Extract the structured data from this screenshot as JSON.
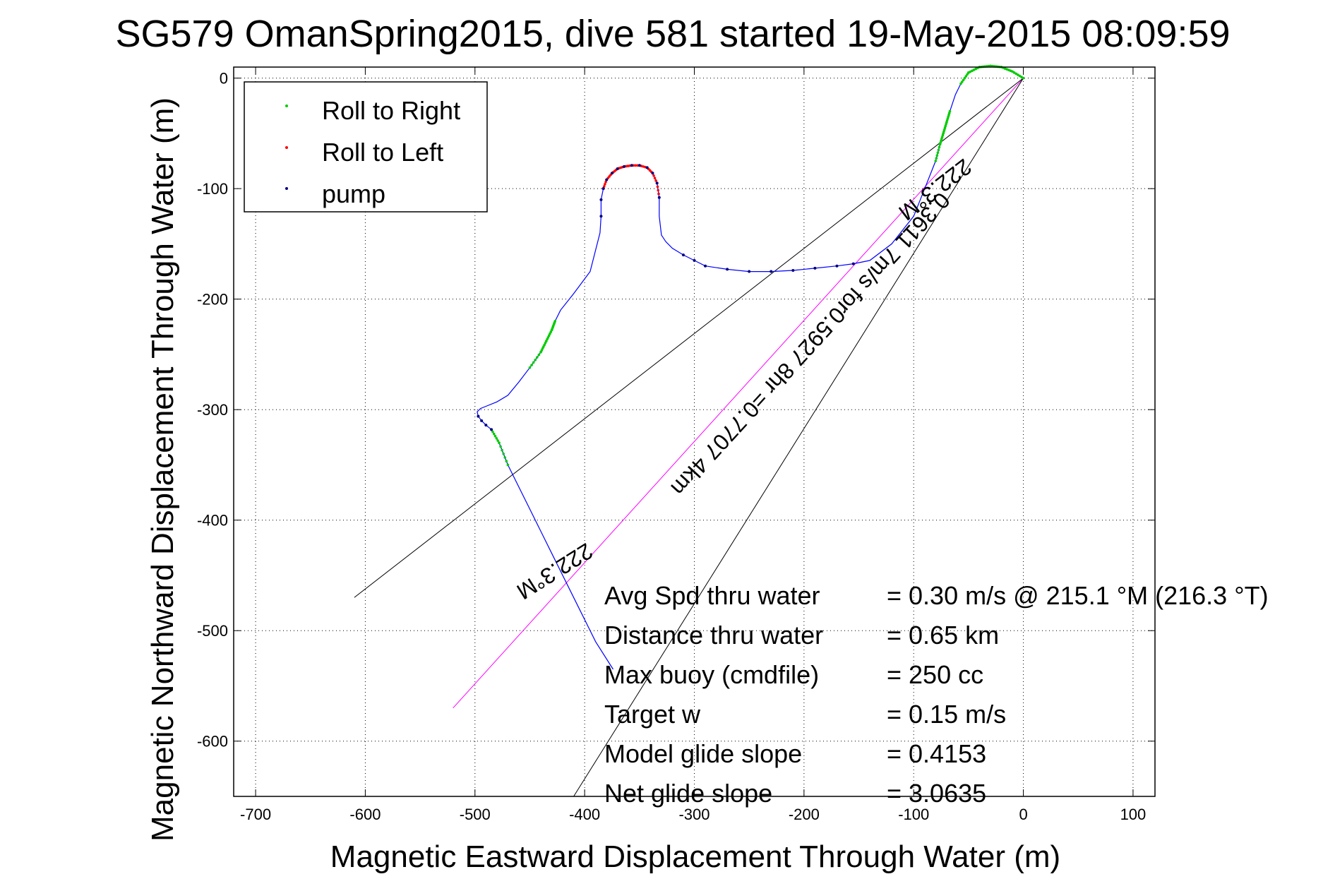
{
  "chart_data": {
    "type": "scatter",
    "title": "SG579 OmanSpring2015, dive 581 started 19-May-2015 08:09:59",
    "xlabel": "Magnetic Eastward Displacement Through Water (m)",
    "ylabel": "Magnetic Northward Displacement Through Water (m)",
    "xlim": [
      -720,
      120
    ],
    "ylim": [
      -650,
      10
    ],
    "xticks": [
      -700,
      -600,
      -500,
      -400,
      -300,
      -200,
      -100,
      0,
      100
    ],
    "yticks": [
      0,
      -100,
      -200,
      -300,
      -400,
      -500,
      -600
    ],
    "grid": true,
    "grid_style": "dotted",
    "legend_position": "top-left",
    "legend": [
      {
        "label": "Roll to Right",
        "color": "#00cc00"
      },
      {
        "label": "Roll to Left",
        "color": "#ff0000"
      },
      {
        "label": "pump",
        "color": "#000080"
      }
    ],
    "track": {
      "name": "track",
      "color": "#0000ff",
      "x": [
        0,
        -10,
        -20,
        -30,
        -40,
        -50,
        -57,
        -62,
        -67,
        -70,
        -73,
        -76,
        -80,
        -90,
        -100,
        -120,
        -140,
        -155,
        -170,
        -190,
        -210,
        -230,
        -250,
        -270,
        -290,
        -300,
        -310,
        -320,
        -326,
        -330,
        -332,
        -332,
        -334,
        -338,
        -343,
        -350,
        -357,
        -364,
        -370,
        -375,
        -380,
        -383,
        -385,
        -385,
        -386,
        -395,
        -410,
        -422,
        -427,
        -430,
        -435,
        -440,
        -450,
        -460,
        -470,
        -480,
        -490,
        -495,
        -498,
        -497,
        -494,
        -490,
        -485,
        -478,
        -470,
        -450,
        -430,
        -410,
        -390,
        -374
      ],
      "y": [
        0,
        6,
        10,
        11,
        10,
        5,
        -5,
        -15,
        -30,
        -40,
        -50,
        -60,
        -75,
        -100,
        -125,
        -150,
        -165,
        -168,
        -170,
        -172,
        -174,
        -175,
        -175,
        -173,
        -170,
        -165,
        -160,
        -154,
        -148,
        -142,
        -125,
        -108,
        -95,
        -86,
        -81,
        -79,
        -79,
        -80,
        -82,
        -86,
        -92,
        -100,
        -110,
        -125,
        -140,
        -175,
        -195,
        -210,
        -220,
        -228,
        -238,
        -248,
        -262,
        -275,
        -287,
        -293,
        -297,
        -299,
        -302,
        -306,
        -310,
        -314,
        -318,
        -330,
        -350,
        -390,
        -430,
        -470,
        -510,
        -535
      ]
    },
    "roll_right_segments": [
      {
        "x": [
          0,
          -10,
          -20,
          -30,
          -40,
          -50,
          -57
        ],
        "y": [
          0,
          6,
          10,
          11,
          10,
          5,
          -5
        ]
      },
      {
        "x": [
          -67,
          -70,
          -73,
          -76,
          -80
        ],
        "y": [
          -30,
          -40,
          -50,
          -60,
          -75
        ]
      },
      {
        "x": [
          -427,
          -430,
          -435,
          -440,
          -450
        ],
        "y": [
          -220,
          -228,
          -238,
          -248,
          -262
        ]
      },
      {
        "x": [
          -485,
          -478,
          -470
        ],
        "y": [
          -318,
          -330,
          -350
        ]
      }
    ],
    "roll_left_segments": [
      {
        "x": [
          -332,
          -334,
          -338,
          -343,
          -350,
          -357,
          -364,
          -370,
          -375,
          -380,
          -383
        ],
        "y": [
          -108,
          -95,
          -86,
          -81,
          -79,
          -79,
          -80,
          -82,
          -86,
          -92,
          -100
        ]
      }
    ],
    "pump_points": {
      "x": [
        -332,
        -334,
        -338,
        -343,
        -350,
        -357,
        -364,
        -370,
        -375,
        -380,
        -383,
        -385,
        -385,
        -310,
        -300,
        -290,
        -270,
        -250,
        -230,
        -210,
        -190,
        -170,
        -155,
        -497,
        -494,
        -490,
        -485
      ],
      "y": [
        -108,
        -95,
        -86,
        -81,
        -79,
        -79,
        -80,
        -82,
        -86,
        -92,
        -100,
        -110,
        -125,
        -160,
        -165,
        -170,
        -173,
        -175,
        -175,
        -174,
        -172,
        -170,
        -168,
        -306,
        -310,
        -314,
        -318
      ]
    },
    "lines": [
      {
        "name": "average-heading-line",
        "color": "#ff00ff",
        "x": [
          0,
          -520
        ],
        "y": [
          0,
          -570
        ]
      },
      {
        "name": "heading-bound-line-upper",
        "color": "#000000",
        "x": [
          0,
          -610
        ],
        "y": [
          0,
          -470
        ]
      },
      {
        "name": "heading-bound-line-lower",
        "color": "#000000",
        "x": [
          0,
          -410
        ],
        "y": [
          0,
          -650
        ]
      }
    ],
    "annotations": {
      "upper_heading": "222.3°M",
      "lower_heading": "222.3°M",
      "speed_line": "0.3611 7m/s for0.5927 8hr =0.7707 4km"
    },
    "stats": [
      {
        "label": "Avg Spd thru water",
        "value": "=  0.30 m/s @ 215.1 °M (216.3 °T)"
      },
      {
        "label": "Distance thru water",
        "value": "=  0.65 km"
      },
      {
        "label": "Max buoy (cmdfile)",
        "value": "= 250 cc"
      },
      {
        "label": "Target w",
        "value": "= 0.15 m/s"
      },
      {
        "label": "Model glide slope",
        "value": "= 0.4153"
      },
      {
        "label": "Net glide slope",
        "value": "= 3.0635"
      }
    ]
  }
}
